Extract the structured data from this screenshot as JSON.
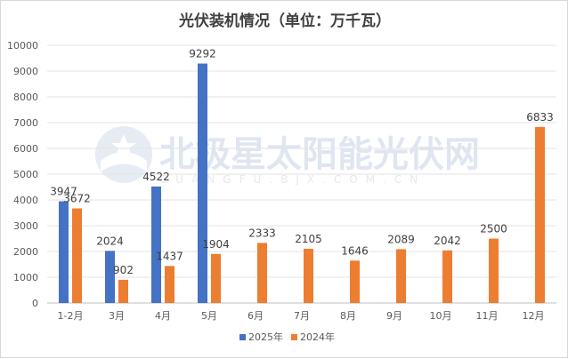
{
  "chart_data": {
    "type": "bar",
    "title": "光伏装机情况（单位：万千瓦）",
    "categories": [
      "1-2月",
      "3月",
      "4月",
      "5月",
      "6月",
      "7月",
      "8月",
      "9月",
      "10月",
      "11月",
      "12月"
    ],
    "series": [
      {
        "name": "2025年",
        "color": "#4472c4",
        "values": [
          3947,
          2024,
          4522,
          9292,
          null,
          null,
          null,
          null,
          null,
          null,
          null
        ]
      },
      {
        "name": "2024年",
        "color": "#ed7d31",
        "values": [
          3672,
          902,
          1437,
          1904,
          2333,
          2105,
          1646,
          2089,
          2042,
          2500,
          6833
        ]
      }
    ],
    "yticks": [
      0,
      1000,
      2000,
      3000,
      4000,
      5000,
      6000,
      7000,
      8000,
      9000,
      10000
    ],
    "ylim": [
      0,
      10000
    ],
    "grid": true,
    "legend": "bottom-center"
  },
  "watermark": {
    "text": "北极星太阳能光伏网",
    "subtext": "GUANGFU.BJX.COM.CN",
    "icon": "polaris-logo-icon"
  }
}
